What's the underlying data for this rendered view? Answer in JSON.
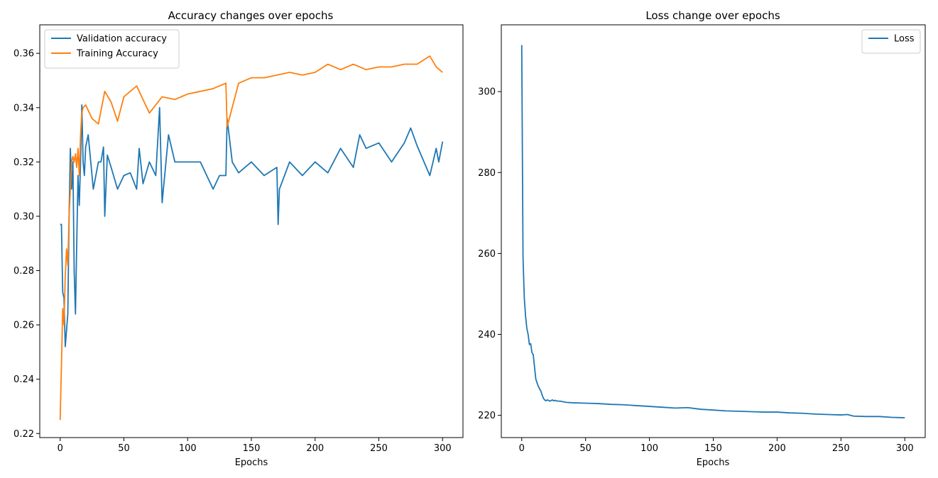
{
  "chart_data": [
    {
      "type": "line",
      "title": "Accuracy changes over epochs",
      "xlabel": "Epochs",
      "ylabel": "",
      "xlim": [
        -16,
        316
      ],
      "ylim": [
        0.2185,
        0.3705
      ],
      "xticks": [
        0,
        50,
        100,
        150,
        200,
        250,
        300
      ],
      "yticks": [
        0.22,
        0.24,
        0.26,
        0.28,
        0.3,
        0.32,
        0.34,
        0.36
      ],
      "xtick_labels": [
        "0",
        "50",
        "100",
        "150",
        "200",
        "250",
        "300"
      ],
      "ytick_labels": [
        "0.22",
        "0.24",
        "0.26",
        "0.28",
        "0.30",
        "0.32",
        "0.34",
        "0.36"
      ],
      "legend": "top-left",
      "grid": false,
      "series": [
        {
          "name": "Validation accuracy",
          "color": "#1f77b4",
          "x": [
            0,
            1,
            2,
            3,
            4,
            5,
            6,
            7,
            8,
            9,
            10,
            11,
            12,
            13,
            14,
            15,
            16,
            17,
            18,
            19,
            20,
            22,
            24,
            26,
            28,
            30,
            32,
            34,
            35,
            37,
            40,
            45,
            50,
            55,
            60,
            62,
            65,
            70,
            75,
            78,
            80,
            85,
            90,
            100,
            110,
            120,
            125,
            130,
            131,
            135,
            140,
            150,
            160,
            170,
            171,
            172,
            180,
            190,
            200,
            210,
            220,
            230,
            235,
            240,
            250,
            260,
            270,
            275,
            280,
            290,
            295,
            297,
            300
          ],
          "y": [
            0.297,
            0.297,
            0.272,
            0.27,
            0.252,
            0.258,
            0.264,
            0.3,
            0.325,
            0.31,
            0.32,
            0.28,
            0.264,
            0.29,
            0.315,
            0.304,
            0.32,
            0.341,
            0.32,
            0.315,
            0.3255,
            0.33,
            0.32,
            0.31,
            0.315,
            0.32,
            0.32,
            0.3255,
            0.3,
            0.3225,
            0.318,
            0.31,
            0.315,
            0.316,
            0.31,
            0.325,
            0.312,
            0.32,
            0.315,
            0.34,
            0.305,
            0.33,
            0.32,
            0.32,
            0.32,
            0.31,
            0.315,
            0.315,
            0.336,
            0.32,
            0.316,
            0.32,
            0.315,
            0.318,
            0.297,
            0.31,
            0.32,
            0.315,
            0.32,
            0.316,
            0.325,
            0.318,
            0.33,
            0.325,
            0.327,
            0.32,
            0.327,
            0.3325,
            0.326,
            0.315,
            0.325,
            0.32,
            0.3275
          ]
        },
        {
          "name": "Training Accuracy",
          "color": "#ff7f0e",
          "x": [
            0,
            1,
            2,
            3,
            4,
            5,
            6,
            7,
            8,
            9,
            10,
            11,
            12,
            13,
            14,
            15,
            16,
            17,
            18,
            20,
            25,
            30,
            35,
            40,
            45,
            50,
            60,
            70,
            80,
            90,
            100,
            110,
            120,
            130,
            131,
            140,
            150,
            160,
            170,
            180,
            190,
            200,
            210,
            220,
            230,
            240,
            250,
            260,
            270,
            280,
            290,
            295,
            300
          ],
          "y": [
            0.225,
            0.245,
            0.266,
            0.26,
            0.278,
            0.288,
            0.282,
            0.3,
            0.31,
            0.32,
            0.322,
            0.32,
            0.323,
            0.318,
            0.325,
            0.315,
            0.33,
            0.338,
            0.34,
            0.341,
            0.336,
            0.334,
            0.346,
            0.342,
            0.335,
            0.344,
            0.348,
            0.338,
            0.344,
            0.343,
            0.345,
            0.346,
            0.347,
            0.349,
            0.333,
            0.349,
            0.351,
            0.351,
            0.352,
            0.353,
            0.352,
            0.353,
            0.356,
            0.354,
            0.356,
            0.354,
            0.355,
            0.355,
            0.356,
            0.356,
            0.359,
            0.355,
            0.353
          ]
        }
      ]
    },
    {
      "type": "line",
      "title": "Loss change over epochs",
      "xlabel": "Epochs",
      "ylabel": "",
      "xlim": [
        -16,
        316
      ],
      "ylim": [
        214.5,
        316.5
      ],
      "xticks": [
        0,
        50,
        100,
        150,
        200,
        250,
        300
      ],
      "yticks": [
        220,
        240,
        260,
        280,
        300
      ],
      "xtick_labels": [
        "0",
        "50",
        "100",
        "150",
        "200",
        "250",
        "300"
      ],
      "ytick_labels": [
        "220",
        "240",
        "260",
        "280",
        "300"
      ],
      "legend": "top-right",
      "grid": false,
      "series": [
        {
          "name": "Loss",
          "color": "#1f77b4",
          "x": [
            0,
            1,
            2,
            3,
            4,
            5,
            6,
            7,
            8,
            9,
            10,
            11,
            12,
            13,
            14,
            15,
            16,
            17,
            18,
            19,
            20,
            21,
            22,
            24,
            25,
            26,
            28,
            30,
            35,
            40,
            50,
            60,
            70,
            80,
            90,
            100,
            110,
            120,
            130,
            140,
            150,
            160,
            170,
            180,
            190,
            200,
            210,
            220,
            230,
            240,
            250,
            255,
            260,
            270,
            280,
            290,
            300
          ],
          "y": [
            311.5,
            259,
            249,
            244.5,
            241.5,
            240,
            237.5,
            237.7,
            235.5,
            235,
            232,
            229,
            228,
            227.2,
            226.5,
            226,
            225,
            224.2,
            223.8,
            223.6,
            223.8,
            223.7,
            223.5,
            223.8,
            223.6,
            223.7,
            223.5,
            223.5,
            223.2,
            223.1,
            223,
            222.9,
            222.7,
            222.6,
            222.4,
            222.2,
            222,
            221.8,
            221.9,
            221.5,
            221.3,
            221.1,
            221,
            220.9,
            220.8,
            220.8,
            220.6,
            220.5,
            220.3,
            220.2,
            220.1,
            220.2,
            219.8,
            219.7,
            219.7,
            219.5,
            219.4
          ]
        }
      ]
    }
  ]
}
